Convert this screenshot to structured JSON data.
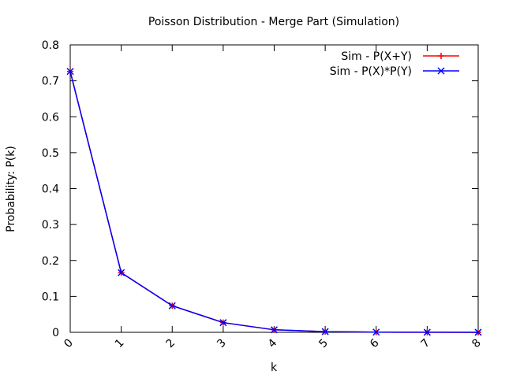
{
  "chart_data": {
    "type": "line",
    "title": "Poisson Distribution - Merge Part (Simulation)",
    "xlabel": "k",
    "ylabel": "Probability: P(k)",
    "xlim": [
      0,
      8
    ],
    "ylim": [
      0,
      0.8
    ],
    "xticks": [
      "0",
      "1",
      "2",
      "3",
      "4",
      "5",
      "6",
      "7",
      "8"
    ],
    "yticks": [
      "0",
      "0.1",
      "0.2",
      "0.3",
      "0.4",
      "0.5",
      "0.6",
      "0.7",
      "0.8"
    ],
    "grid": false,
    "legend_position": "top-right",
    "x": [
      0,
      1,
      2,
      3,
      4,
      5,
      6,
      7,
      8
    ],
    "series": [
      {
        "name": "Sim - P(X+Y)",
        "color": "#ff0000",
        "marker": "plus",
        "values": [
          0.726,
          0.166,
          0.074,
          0.027,
          0.007,
          0.002,
          0.0005,
          0.0002,
          0.0001
        ]
      },
      {
        "name": "Sim - P(X)*P(Y)",
        "color": "#0000ff",
        "marker": "cross",
        "values": [
          0.726,
          0.166,
          0.074,
          0.027,
          0.007,
          0.002,
          0.0005,
          0.0002,
          0.0001
        ]
      }
    ]
  }
}
